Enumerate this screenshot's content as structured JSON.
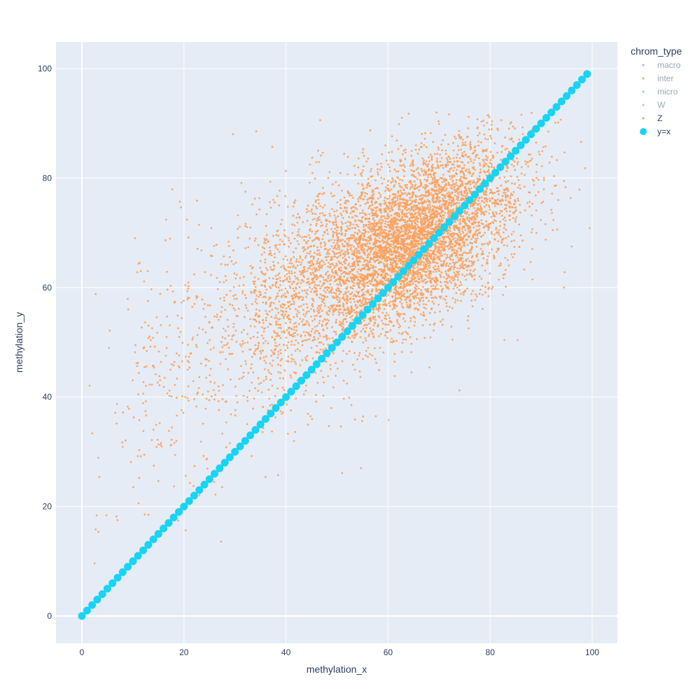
{
  "chart_data": {
    "type": "scatter",
    "xlabel": "methylation_x",
    "ylabel": "methylation_y",
    "xlim": [
      -5,
      105
    ],
    "ylim": [
      -5,
      105
    ],
    "x_ticks": [
      0,
      20,
      40,
      60,
      80,
      100
    ],
    "y_ticks": [
      0,
      20,
      40,
      60,
      80,
      100
    ],
    "grid": true,
    "background": "#E5ECF6",
    "legend": {
      "title": "chrom_type",
      "placement": "top-right",
      "entries": [
        {
          "name": "macro",
          "color": "#636EFA",
          "visible": false
        },
        {
          "name": "inter",
          "color": "#EF553B",
          "visible": false
        },
        {
          "name": "micro",
          "color": "#00CC96",
          "visible": false
        },
        {
          "name": "W",
          "color": "#AB63FA",
          "visible": false
        },
        {
          "name": "Z",
          "color": "#FFA15A",
          "visible": true
        },
        {
          "name": "y=x",
          "color": "#19D3F3",
          "visible": true
        }
      ]
    },
    "series": [
      {
        "name": "Z",
        "color": "#FFA15A",
        "clusters": [
          {
            "cx": 64,
            "cy": 68,
            "sx": 8,
            "sy": 7,
            "n": 3400
          },
          {
            "cx": 50,
            "cy": 62,
            "sx": 8,
            "sy": 9,
            "n": 1300
          },
          {
            "cx": 74,
            "cy": 74,
            "sx": 8,
            "sy": 7,
            "n": 1200
          },
          {
            "cx": 38,
            "cy": 56,
            "sx": 6,
            "sy": 9,
            "n": 450
          },
          {
            "cx": 20,
            "cy": 45,
            "sx": 8,
            "sy": 12,
            "n": 320
          }
        ],
        "outliers": [
          [
            2.7,
            15.8
          ],
          [
            2.5,
            9.6
          ],
          [
            3.2,
            0.6
          ],
          [
            3.4,
            25.4
          ],
          [
            4.8,
            18.4
          ],
          [
            7.0,
            17.5
          ],
          [
            27.3,
            13.6
          ],
          [
            51.0,
            26.1
          ],
          [
            54.7,
            27.0
          ],
          [
            37.3,
            85.7
          ],
          [
            19.2,
            75.7
          ],
          [
            96.0,
            67.5
          ],
          [
            97.5,
            77.9
          ],
          [
            98.6,
            81.8
          ],
          [
            94.6,
            62.8
          ],
          [
            88.3,
            61.5
          ],
          [
            85.4,
            50.4
          ],
          [
            82.8,
            50.4
          ],
          [
            60.1,
            35.8
          ],
          [
            57.6,
            36.5
          ],
          [
            53.5,
            35.9
          ],
          [
            74.0,
            41.2
          ],
          [
            46.3,
            85.0
          ],
          [
            16.5,
            72.4
          ],
          [
            10.4,
            69.0
          ],
          [
            3.2,
            28.9
          ],
          [
            41.8,
            33.6
          ],
          [
            44.8,
            36.5
          ]
        ],
        "y_range": [
          5,
          92
        ]
      },
      {
        "name": "y=x",
        "color": "#19D3F3",
        "x_range": [
          0,
          99
        ],
        "step": 1
      }
    ]
  }
}
